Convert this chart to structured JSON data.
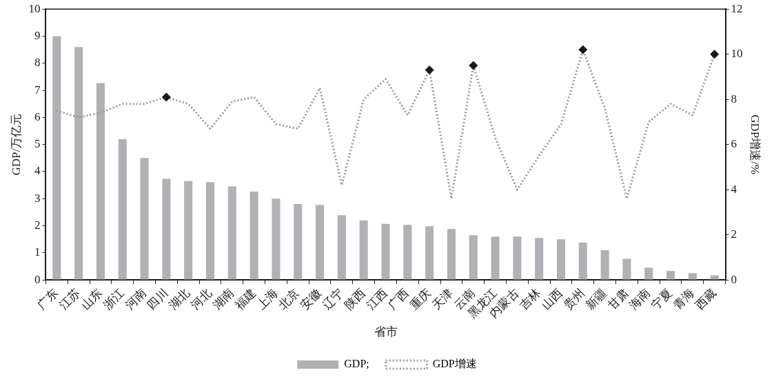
{
  "chart_data": {
    "type": "bar",
    "xlabel": "省市",
    "ylabel": "GDP/万亿元",
    "y2label": "GDP增速/%",
    "categories": [
      "广东",
      "江苏",
      "山东",
      "浙江",
      "河南",
      "四川",
      "湖北",
      "河北",
      "湖南",
      "福建",
      "上海",
      "北京",
      "安徽",
      "辽宁",
      "陕西",
      "江西",
      "广西",
      "重庆",
      "天津",
      "云南",
      "黑龙江",
      "内蒙古",
      "吉林",
      "山西",
      "贵州",
      "新疆",
      "甘肃",
      "海南",
      "宁夏",
      "青海",
      "西藏"
    ],
    "series": [
      {
        "name": "GDP;",
        "color": "#b0b1b4",
        "values": [
          9.0,
          8.6,
          7.27,
          5.2,
          4.5,
          3.73,
          3.65,
          3.61,
          3.45,
          3.26,
          3.0,
          2.8,
          2.77,
          2.39,
          2.2,
          2.07,
          2.03,
          1.98,
          1.88,
          1.65,
          1.6,
          1.6,
          1.55,
          1.5,
          1.38,
          1.1,
          0.78,
          0.45,
          0.33,
          0.25,
          0.17
        ]
      },
      {
        "name": "GDP增速",
        "type": "line",
        "axis": "y2",
        "color": "#999999",
        "line_style": "dotted",
        "marker": "none",
        "values": [
          7.5,
          7.2,
          7.4,
          7.8,
          7.8,
          8.1,
          7.8,
          6.7,
          7.9,
          8.1,
          6.9,
          6.7,
          8.5,
          4.2,
          8.0,
          8.9,
          7.3,
          9.3,
          3.6,
          9.5,
          6.3,
          4.0,
          5.5,
          6.9,
          10.2,
          7.6,
          3.6,
          7.0,
          7.8,
          7.3,
          10.0
        ]
      },
      {
        "type": "scatter",
        "axis": "y2",
        "color": "#1a1a1a",
        "marker": "diamond",
        "x": [
          "四川",
          "重庆",
          "云南",
          "贵州",
          "西藏"
        ],
        "values": [
          8.1,
          9.3,
          9.5,
          10.2,
          10.0
        ]
      }
    ],
    "ylim": [
      0,
      10
    ],
    "yticks": [
      0,
      1,
      2,
      3,
      4,
      5,
      6,
      7,
      8,
      9,
      10
    ],
    "y2lim": [
      0,
      12
    ],
    "y2ticks": [
      0,
      2,
      4,
      6,
      8,
      10,
      12
    ],
    "grid": false,
    "legend": "bottom"
  }
}
